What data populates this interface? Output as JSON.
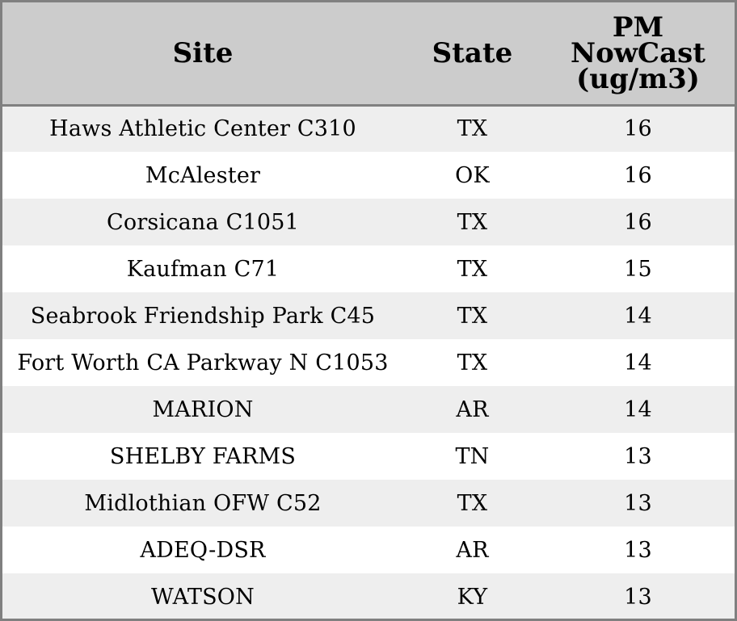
{
  "chart_data": {
    "type": "table",
    "columns": [
      "Site",
      "State",
      "PM NowCast (ug/m3)"
    ],
    "header_lines": {
      "site": [
        "Site"
      ],
      "state": [
        "State"
      ],
      "pm": [
        "PM",
        "NowCast",
        "(ug/m3)"
      ]
    },
    "rows": [
      {
        "site": "Haws Athletic Center C310",
        "state": "TX",
        "pm": 16
      },
      {
        "site": "McAlester",
        "state": "OK",
        "pm": 16
      },
      {
        "site": "Corsicana C1051",
        "state": "TX",
        "pm": 16
      },
      {
        "site": "Kaufman C71",
        "state": "TX",
        "pm": 15
      },
      {
        "site": "Seabrook Friendship Park C45",
        "state": "TX",
        "pm": 14
      },
      {
        "site": "Fort Worth CA Parkway N C1053",
        "state": "TX",
        "pm": 14
      },
      {
        "site": "MARION",
        "state": "AR",
        "pm": 14
      },
      {
        "site": "SHELBY FARMS",
        "state": "TN",
        "pm": 13
      },
      {
        "site": "Midlothian OFW C52",
        "state": "TX",
        "pm": 13
      },
      {
        "site": "ADEQ-DSR",
        "state": "AR",
        "pm": 13
      },
      {
        "site": "WATSON",
        "state": "KY",
        "pm": 13
      }
    ],
    "colors": {
      "header_bg": "#cccccc",
      "row_odd_bg": "#eeeeee",
      "row_even_bg": "#ffffff",
      "border": "#808080"
    }
  }
}
